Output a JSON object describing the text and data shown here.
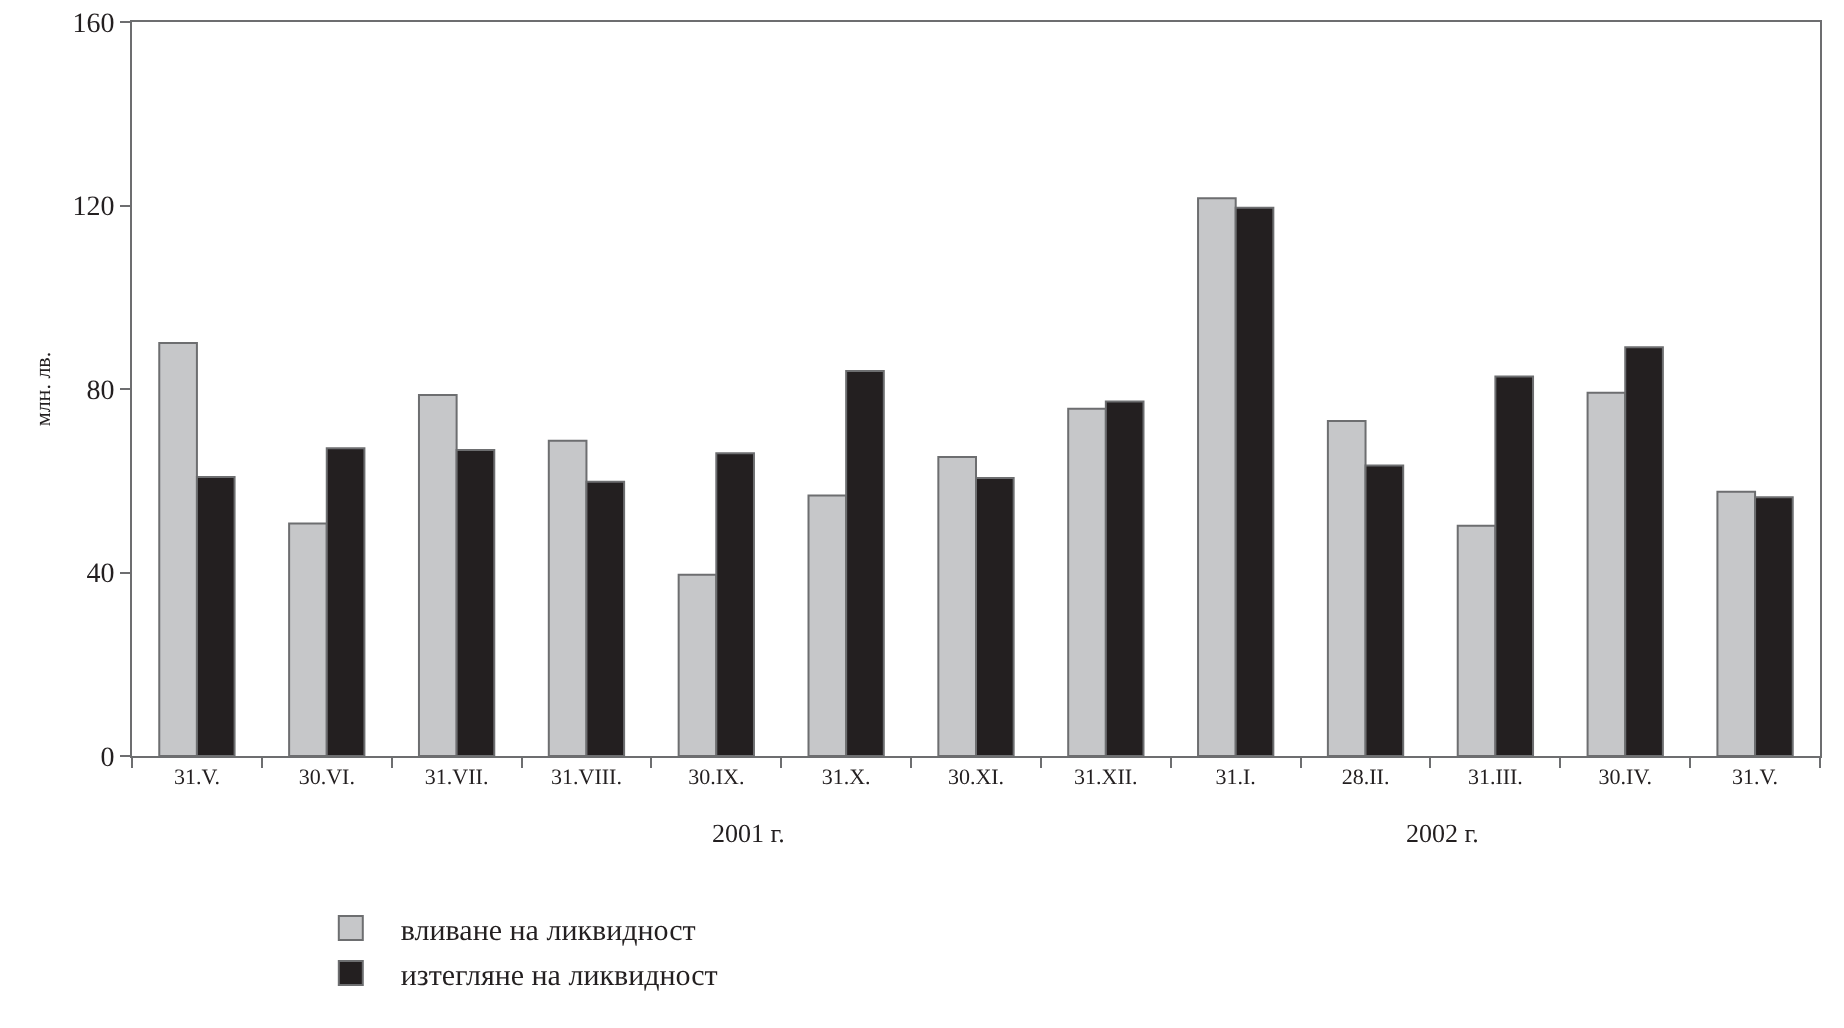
{
  "chart_data": {
    "type": "bar",
    "ylabel": "млн. лв.",
    "categories": [
      "31.V.",
      "30.VI.",
      "31.VII.",
      "31.VIII.",
      "30.IX.",
      "31.X.",
      "30.XI.",
      "31.XII.",
      "31.I.",
      "28.II.",
      "31.III.",
      "30.IV.",
      "31.V."
    ],
    "series": [
      {
        "name": "вливане на ликвидност",
        "color": "#c6c7c9",
        "values": [
          90,
          50.7,
          78.7,
          68.7,
          39.5,
          56.8,
          65.2,
          75.7,
          121.6,
          73,
          50.2,
          79.2,
          57.6
        ]
      },
      {
        "name": "изтегляне на ликвидност",
        "color": "#231f20",
        "values": [
          60.8,
          67.1,
          66.7,
          59.8,
          66,
          83.9,
          60.6,
          77.3,
          119.5,
          63.3,
          82.7,
          89.1,
          56.4
        ]
      }
    ],
    "ylim": [
      0,
      160
    ],
    "yticks": [
      0,
      40,
      80,
      120,
      160
    ],
    "grid": false,
    "legend": "bottom",
    "annotations": [
      "2001 г.",
      "2002 г."
    ]
  }
}
